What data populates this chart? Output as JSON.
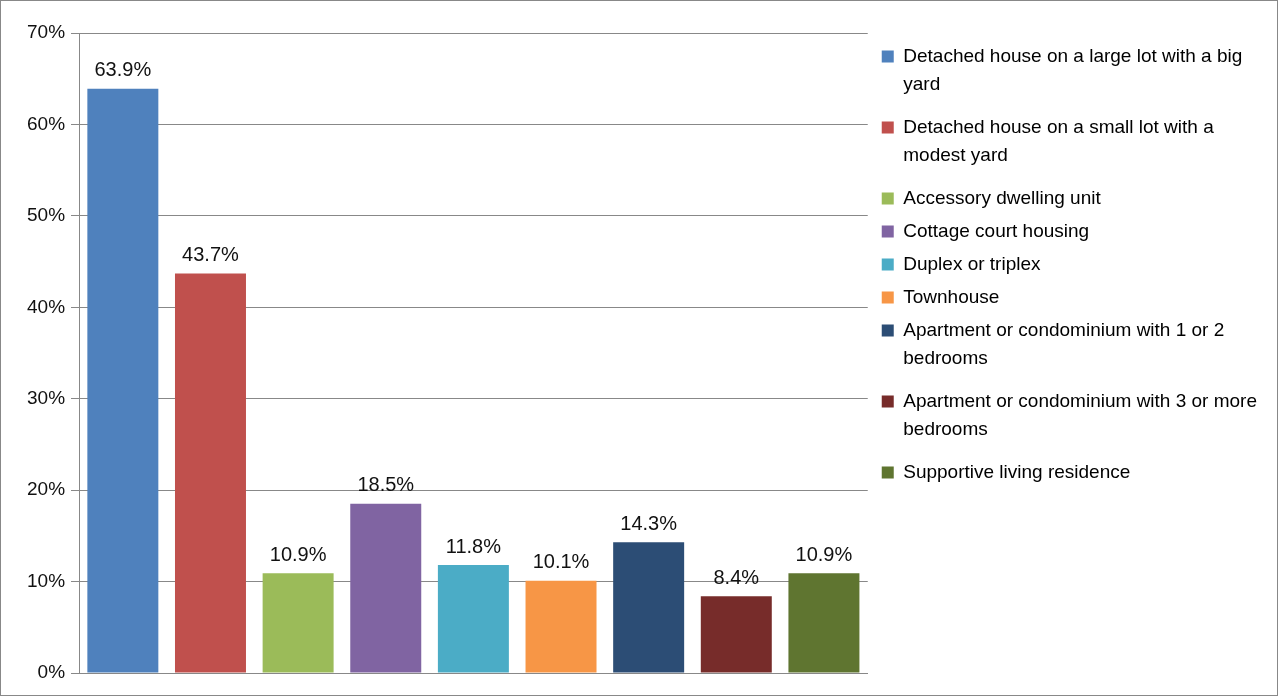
{
  "chart_data": {
    "type": "bar",
    "categories": [
      null
    ],
    "series": [
      {
        "name": "Detached house on a large lot with a big yard",
        "color": "#4f81bd",
        "values": [
          63.9
        ],
        "value_labels": [
          "63.9%"
        ]
      },
      {
        "name": "Detached house on a small lot with a modest yard",
        "color": "#c0504d",
        "values": [
          43.7
        ],
        "value_labels": [
          "43.7%"
        ]
      },
      {
        "name": "Accessory dwelling unit",
        "color": "#9bbb59",
        "values": [
          10.9
        ],
        "value_labels": [
          "10.9%"
        ]
      },
      {
        "name": "Cottage court housing",
        "color": "#8064a2",
        "values": [
          18.5
        ],
        "value_labels": [
          "18.5%"
        ]
      },
      {
        "name": "Duplex or triplex",
        "color": "#4bacc6",
        "values": [
          11.8
        ],
        "value_labels": [
          "11.8%"
        ]
      },
      {
        "name": "Townhouse",
        "color": "#f79646",
        "values": [
          10.1
        ],
        "value_labels": [
          "10.1%"
        ]
      },
      {
        "name": "Apartment or condominium with 1 or 2 bedrooms",
        "color": "#2c4d75",
        "values": [
          14.3
        ],
        "value_labels": [
          "14.3%"
        ]
      },
      {
        "name": "Apartment or condominium with 3 or more bedrooms",
        "color": "#772c2a",
        "values": [
          8.4
        ],
        "value_labels": [
          "8.4%"
        ]
      },
      {
        "name": "Supportive living residence",
        "color": "#5f7530",
        "values": [
          10.9
        ],
        "value_labels": [
          "10.9%"
        ]
      }
    ],
    "ylim": [
      0,
      70
    ],
    "yticks": [
      {
        "value": 0,
        "label": "0%"
      },
      {
        "value": 10,
        "label": "10%"
      },
      {
        "value": 20,
        "label": "20%"
      },
      {
        "value": 30,
        "label": "30%"
      },
      {
        "value": 40,
        "label": "40%"
      },
      {
        "value": 50,
        "label": "50%"
      },
      {
        "value": 60,
        "label": "60%"
      },
      {
        "value": 70,
        "label": "70%"
      }
    ],
    "grid": "y",
    "legend": "right",
    "tick_labels": "y"
  }
}
